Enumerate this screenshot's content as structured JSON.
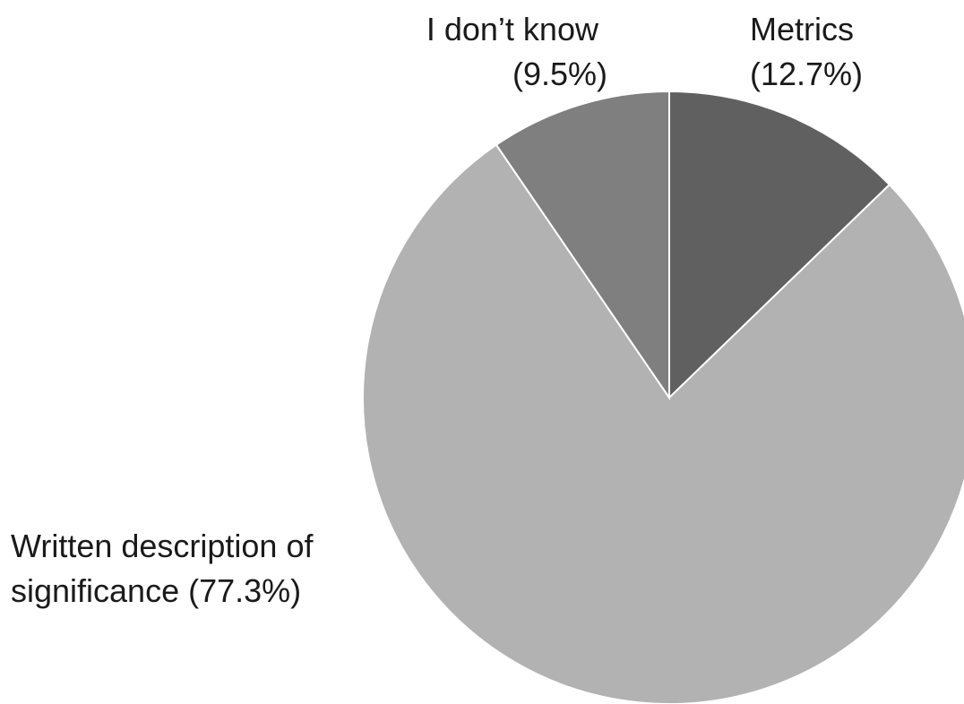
{
  "chart_data": {
    "type": "pie",
    "title": "",
    "slices": [
      {
        "label": "Metrics",
        "value": 12.7,
        "display": "(12.7%)",
        "color": "#606060"
      },
      {
        "label": "Written description of significance",
        "value": 77.3,
        "display": "(77.3%)",
        "color": "#b2b2b2"
      },
      {
        "label": "I don’t know",
        "value": 9.5,
        "display": "(9.5%)",
        "color": "#7f7f7f"
      }
    ],
    "label_lines": [
      [
        "Metrics",
        "(12.7%)"
      ],
      [
        "Written description of",
        "significance (77.3%)"
      ],
      [
        "I don’t know",
        "(9.5%)"
      ]
    ],
    "start_angle": "12 o'clock",
    "direction": "clockwise",
    "slice_border_color": "#ffffff"
  }
}
